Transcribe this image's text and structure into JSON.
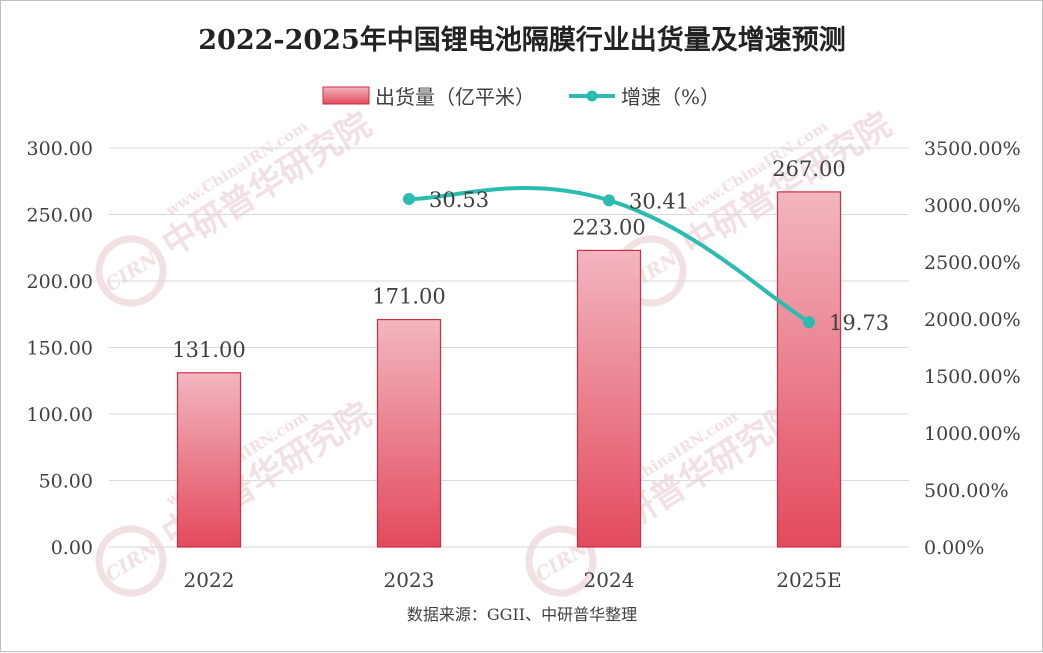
{
  "chart_data": {
    "type": "bar",
    "title": "2022-2025年中国锂电池隔膜行业出货量及增速预测",
    "categories": [
      "2022",
      "2023",
      "2024",
      "2025E"
    ],
    "series": [
      {
        "name": "出货量（亿平米）",
        "kind": "bar",
        "axis": "left",
        "values": [
          131.0,
          171.0,
          223.0,
          267.0
        ],
        "labels": [
          "131.00",
          "171.00",
          "223.00",
          "267.00"
        ]
      },
      {
        "name": "增速（%）",
        "kind": "line",
        "axis": "right",
        "values": [
          null,
          30.53,
          30.41,
          19.73
        ],
        "labels": [
          "",
          "30.53",
          "30.41",
          "19.73"
        ]
      }
    ],
    "left_axis": {
      "ylim": [
        0,
        300
      ],
      "ticks": [
        0,
        50,
        100,
        150,
        200,
        250,
        300
      ],
      "tick_labels": [
        "0.00",
        "50.00",
        "100.00",
        "150.00",
        "200.00",
        "250.00",
        "300.00"
      ]
    },
    "right_axis": {
      "ylim": [
        0,
        3500
      ],
      "ticks": [
        0,
        500,
        1000,
        1500,
        2000,
        2500,
        3000,
        3500
      ],
      "tick_labels": [
        "0.00%",
        "500.00%",
        "1000.00%",
        "1500.00%",
        "2000.00%",
        "2500.00%",
        "3000.00%",
        "3500.00%"
      ]
    },
    "growth_plot_scale": 100,
    "grid": true,
    "legend_position": "top-center",
    "source": "数据来源：GGII、中研普华整理",
    "watermark": {
      "logo": "CIRN",
      "text": "中研普华研究院",
      "url": "www.ChinaIRN.com"
    },
    "colors": {
      "bar_top": "#f2b6c0",
      "bar_bottom": "#e34a5d",
      "bar_stroke": "#d12c44",
      "line": "#2bbcaf",
      "grid": "#d9d9d9",
      "text": "#404040",
      "watermark": "#e8c9cd"
    }
  }
}
